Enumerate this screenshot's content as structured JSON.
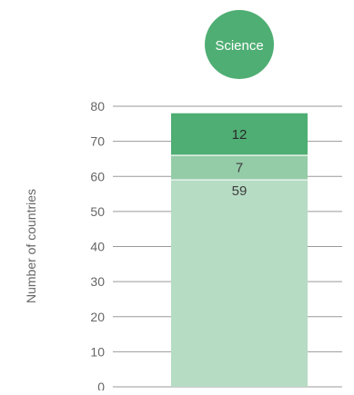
{
  "chart_data": {
    "type": "bar",
    "stacked": true,
    "categories": [
      "Science"
    ],
    "category_badge": "Science",
    "ylabel": "Number of countries",
    "ylim": [
      0,
      80
    ],
    "yticks": [
      0,
      10,
      20,
      30,
      40,
      50,
      60,
      70,
      80
    ],
    "grid": true,
    "legend": "none",
    "series": [
      {
        "values": [
          59
        ],
        "color": "#b7dcc4",
        "label_color": "#3d3d3d"
      },
      {
        "values": [
          7
        ],
        "color": "#95cca8",
        "label_color": "#3d3d3d"
      },
      {
        "values": [
          12
        ],
        "color": "#4fae73",
        "label_color": "#2a2a2a"
      }
    ],
    "badge_color": "#4fae73",
    "badge_text_color": "#ffffff",
    "grid_color": "#9a9a9a",
    "tick_color": "#666666"
  }
}
